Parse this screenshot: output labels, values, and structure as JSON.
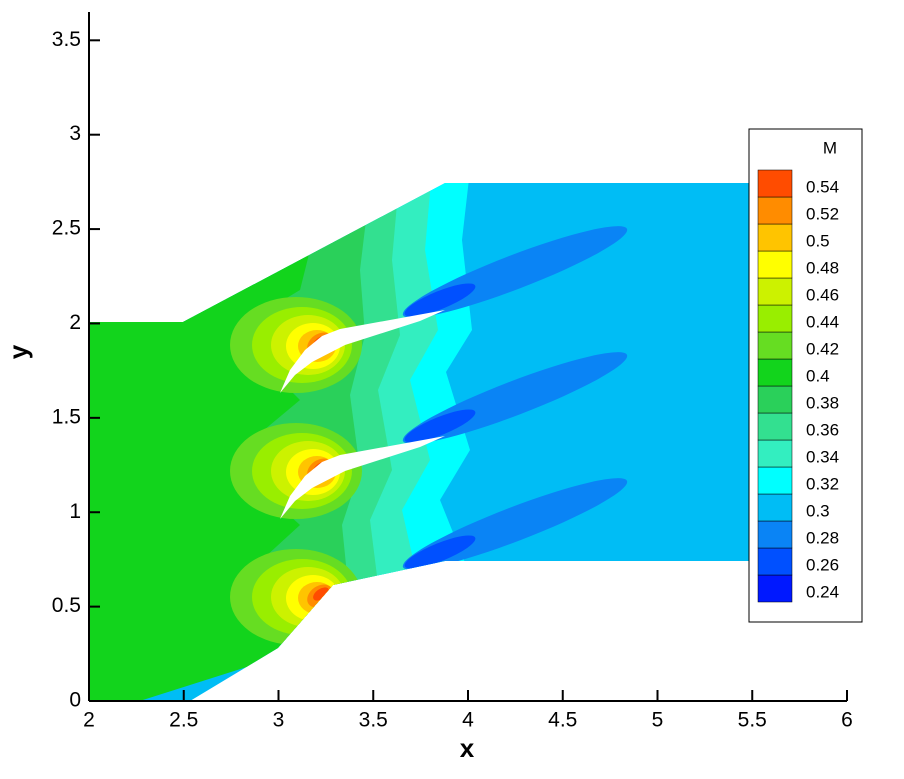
{
  "chart_data": {
    "type": "contour",
    "xlabel": "x",
    "ylabel": "y",
    "xlim": [
      2,
      6
    ],
    "ylim": [
      0,
      3.65
    ],
    "xticks": [
      2,
      2.5,
      3,
      3.5,
      4,
      4.5,
      5,
      5.5,
      6
    ],
    "yticks": [
      0,
      0.5,
      1,
      1.5,
      2,
      2.5,
      3,
      3.5
    ],
    "colorbar": {
      "title": "M",
      "levels": [
        0.24,
        0.26,
        0.28,
        0.3,
        0.32,
        0.34,
        0.36,
        0.38,
        0.4,
        0.42,
        0.44,
        0.46,
        0.48,
        0.5,
        0.52,
        0.54
      ],
      "colors": [
        "#0018ff",
        "#0050ff",
        "#0a84f5",
        "#00bdf5",
        "#00ffff",
        "#33eec0",
        "#33e090",
        "#2ad05a",
        "#12d41c",
        "#66dd22",
        "#99ee00",
        "#ccf200",
        "#ffff00",
        "#ffc400",
        "#ff8c00",
        "#ff4c00"
      ]
    }
  }
}
